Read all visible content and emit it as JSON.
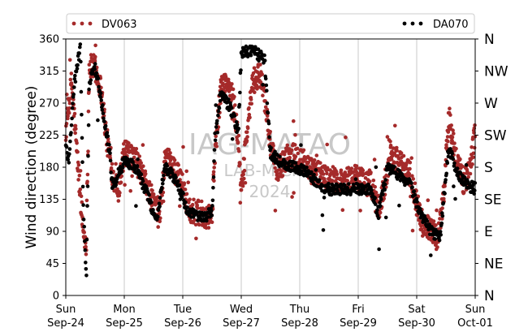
{
  "chart_data": {
    "type": "scatter",
    "ylabel": "Wind direction (degree)",
    "ylim": [
      0,
      360
    ],
    "yticks": [
      0,
      45,
      90,
      135,
      180,
      225,
      270,
      315,
      360
    ],
    "compass_labels": [
      "N",
      "NE",
      "E",
      "SE",
      "S",
      "SW",
      "W",
      "NW",
      "N"
    ],
    "x_range_days": [
      "2023-09-24",
      "2023-10-01"
    ],
    "x_tick_labels": [
      [
        "Sun",
        "Sep-24"
      ],
      [
        "Mon",
        "Sep-25"
      ],
      [
        "Tue",
        "Sep-26"
      ],
      [
        "Wed",
        "Sep-27"
      ],
      [
        "Thu",
        "Sep-28"
      ],
      [
        "Fri",
        "Sep-29"
      ],
      [
        "Sat",
        "Sep-30"
      ],
      [
        "Sun",
        "Oct-01"
      ]
    ],
    "grid": "vertical at day boundaries",
    "legend_placement": "top",
    "watermark": [
      "IAG-MATAO",
      "LAB-MICRO",
      "2024"
    ],
    "series": [
      {
        "name": "DV063",
        "color": "#a52a2a",
        "trend": [
          [
            0.0,
            230
          ],
          [
            0.1,
            300
          ],
          [
            0.2,
            190
          ],
          [
            0.3,
            90
          ],
          [
            0.35,
            70
          ],
          [
            0.4,
            320
          ],
          [
            0.5,
            320
          ],
          [
            0.6,
            290
          ],
          [
            0.7,
            220
          ],
          [
            0.8,
            170
          ],
          [
            0.9,
            150
          ],
          [
            1.0,
            200
          ],
          [
            1.2,
            190
          ],
          [
            1.4,
            150
          ],
          [
            1.6,
            110
          ],
          [
            1.7,
            190
          ],
          [
            1.8,
            185
          ],
          [
            2.0,
            155
          ],
          [
            2.1,
            120
          ],
          [
            2.3,
            115
          ],
          [
            2.5,
            110
          ],
          [
            2.55,
            200
          ],
          [
            2.65,
            290
          ],
          [
            2.75,
            300
          ],
          [
            2.85,
            280
          ],
          [
            2.95,
            220
          ],
          [
            3.0,
            140
          ],
          [
            3.1,
            230
          ],
          [
            3.2,
            300
          ],
          [
            3.35,
            310
          ],
          [
            3.5,
            210
          ],
          [
            3.6,
            175
          ],
          [
            3.8,
            195
          ],
          [
            4.0,
            195
          ],
          [
            4.2,
            175
          ],
          [
            4.5,
            165
          ],
          [
            4.7,
            160
          ],
          [
            4.9,
            165
          ],
          [
            5.0,
            165
          ],
          [
            5.2,
            160
          ],
          [
            5.35,
            120
          ],
          [
            5.45,
            155
          ],
          [
            5.55,
            200
          ],
          [
            5.7,
            185
          ],
          [
            5.9,
            170
          ],
          [
            6.0,
            130
          ],
          [
            6.1,
            100
          ],
          [
            6.25,
            95
          ],
          [
            6.35,
            80
          ],
          [
            6.45,
            130
          ],
          [
            6.55,
            250
          ],
          [
            6.65,
            200
          ],
          [
            6.8,
            160
          ],
          [
            6.9,
            170
          ],
          [
            7.0,
            230
          ]
        ],
        "scatter_spread": 18
      },
      {
        "name": "DA070",
        "color": "#000000",
        "trend": [
          [
            0.0,
            210
          ],
          [
            0.05,
            190
          ],
          [
            0.15,
            300
          ],
          [
            0.25,
            350
          ],
          [
            0.3,
            120
          ],
          [
            0.35,
            20
          ],
          [
            0.4,
            300
          ],
          [
            0.5,
            320
          ],
          [
            0.6,
            280
          ],
          [
            0.75,
            200
          ],
          [
            0.8,
            150
          ],
          [
            1.0,
            190
          ],
          [
            1.2,
            180
          ],
          [
            1.4,
            140
          ],
          [
            1.55,
            105
          ],
          [
            1.7,
            180
          ],
          [
            1.9,
            160
          ],
          [
            2.1,
            115
          ],
          [
            2.3,
            110
          ],
          [
            2.5,
            115
          ],
          [
            2.55,
            220
          ],
          [
            2.65,
            285
          ],
          [
            2.8,
            265
          ],
          [
            2.95,
            230
          ],
          [
            3.0,
            340
          ],
          [
            3.2,
            345
          ],
          [
            3.4,
            330
          ],
          [
            3.5,
            200
          ],
          [
            3.7,
            185
          ],
          [
            3.9,
            180
          ],
          [
            4.1,
            175
          ],
          [
            4.4,
            150
          ],
          [
            4.7,
            148
          ],
          [
            5.0,
            150
          ],
          [
            5.2,
            150
          ],
          [
            5.35,
            115
          ],
          [
            5.5,
            180
          ],
          [
            5.7,
            170
          ],
          [
            5.9,
            155
          ],
          [
            6.05,
            115
          ],
          [
            6.25,
            90
          ],
          [
            6.4,
            80
          ],
          [
            6.55,
            210
          ],
          [
            6.7,
            170
          ],
          [
            6.85,
            155
          ],
          [
            7.0,
            150
          ]
        ],
        "scatter_spread": 8
      }
    ]
  }
}
